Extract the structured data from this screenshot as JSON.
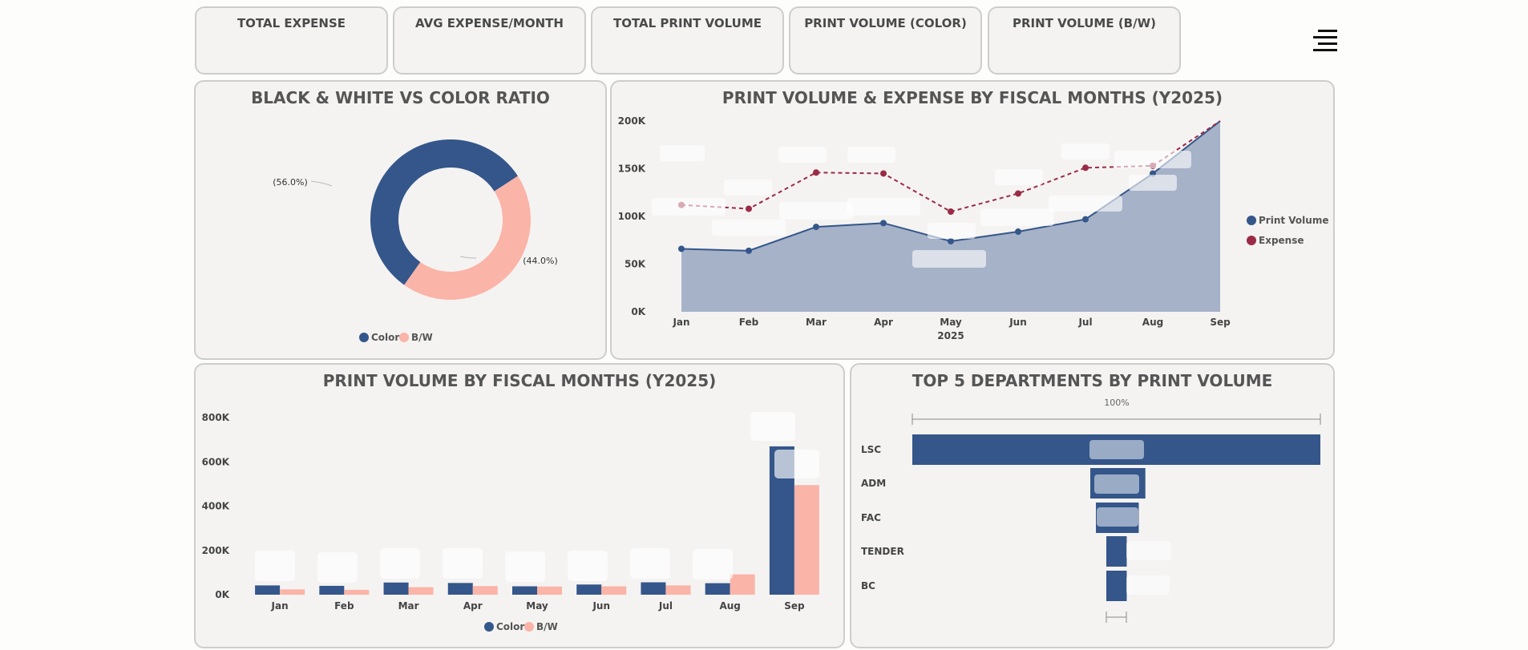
{
  "kpis": [
    {
      "title": "TOTAL EXPENSE"
    },
    {
      "title": "AVG EXPENSE/MONTH"
    },
    {
      "title": "TOTAL PRINT VOLUME"
    },
    {
      "title": "PRINT VOLUME (COLOR)"
    },
    {
      "title": "PRINT VOLUME (B/W)"
    }
  ],
  "menu_icon": "hamburger-menu-icon",
  "colors": {
    "navy": "#34568a",
    "salmon": "#fbb4a8",
    "maroon": "#9b2b45",
    "area": "#a6b2c8"
  },
  "chart_data": [
    {
      "type": "pie",
      "title": "BLACK & WHITE VS COLOR RATIO",
      "labels": [
        "Color",
        "B/W"
      ],
      "values": [
        56.0,
        44.0
      ],
      "slice_labels": [
        "(56.0%)",
        "(44.0%)"
      ],
      "legend": [
        {
          "name": "Color",
          "color": "#34568a"
        },
        {
          "name": "B/W",
          "color": "#fbb4a8"
        }
      ],
      "legend_position": "bottom"
    },
    {
      "type": "line",
      "title": "PRINT VOLUME & EXPENSE BY FISCAL MONTHS (Y2025)",
      "categories": [
        "Jan",
        "Feb",
        "Mar",
        "Apr",
        "May",
        "Jun",
        "Jul",
        "Aug",
        "Sep"
      ],
      "xlabel": "2025",
      "yticks": [
        "0K",
        "50K",
        "100K",
        "150K",
        "200K"
      ],
      "ylim": [
        0,
        200000
      ],
      "series": [
        {
          "name": "Print Volume",
          "values": [
            66000,
            64000,
            89000,
            93000,
            74000,
            84000,
            97000,
            145000,
            200000
          ],
          "color": "#34568a"
        },
        {
          "name": "Expense",
          "values": [
            112000,
            108000,
            146000,
            145000,
            105000,
            124000,
            151000,
            153000,
            200000
          ],
          "color": "#9b2b45"
        }
      ],
      "legend_position": "right"
    },
    {
      "type": "bar",
      "title": "PRINT VOLUME BY FISCAL MONTHS (Y2025)",
      "categories": [
        "Jan",
        "Feb",
        "Mar",
        "Apr",
        "May",
        "Jun",
        "Jul",
        "Aug",
        "Sep"
      ],
      "yticks": [
        "0K",
        "200K",
        "400K",
        "600K",
        "800K"
      ],
      "ylim": [
        0,
        800000
      ],
      "series": [
        {
          "name": "Color",
          "values": [
            42000,
            40000,
            55000,
            53000,
            38000,
            46000,
            56000,
            52000,
            670000
          ],
          "color": "#34568a"
        },
        {
          "name": "B/W",
          "values": [
            24000,
            22000,
            34000,
            39000,
            37000,
            38000,
            42000,
            92000,
            495000
          ],
          "color": "#fbb4a8"
        }
      ],
      "legend": [
        {
          "name": "Color",
          "color": "#34568a"
        },
        {
          "name": "B/W",
          "color": "#fbb4a8"
        }
      ],
      "legend_position": "bottom"
    },
    {
      "type": "bar",
      "title": "TOP 5 DEPARTMENTS BY PRINT VOLUME",
      "categories": [
        "LSC",
        "ADM",
        "FAC",
        "TENDER",
        "BC"
      ],
      "values": [
        100,
        13.5,
        10.5,
        5,
        5
      ],
      "top_label": "100%"
    }
  ]
}
